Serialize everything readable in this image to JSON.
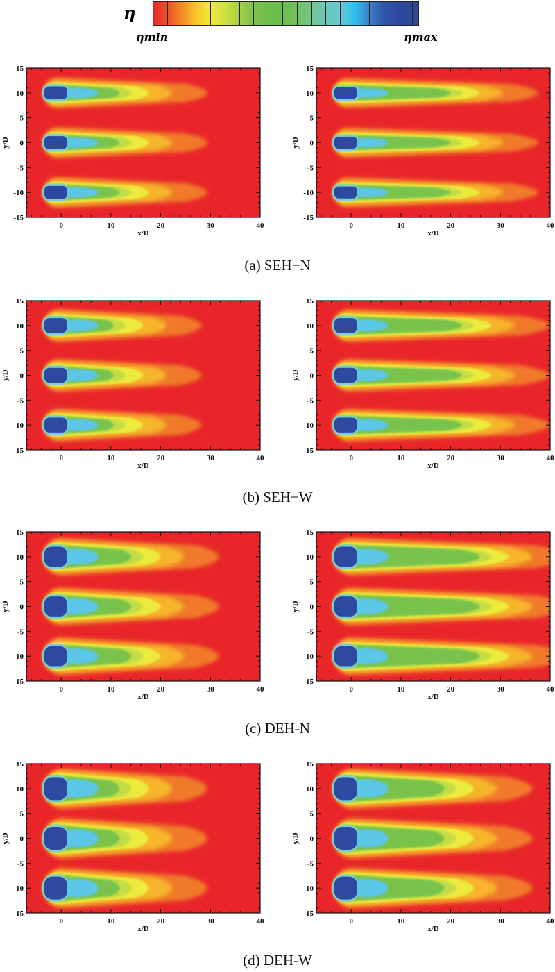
{
  "colorbar": {
    "symbol": "η",
    "min_label": "ηmin",
    "max_label": "ηmax",
    "colors": [
      "#e8262a",
      "#ef5128",
      "#f58a25",
      "#f9c42a",
      "#f1ea3a",
      "#cde043",
      "#a6d045",
      "#7dc24a",
      "#6fbe4a",
      "#6cbd4c",
      "#72c05d",
      "#74c690",
      "#6bc7bb",
      "#68c8d4",
      "#2fbff0",
      "#3c80c6",
      "#2f55a8",
      "#2e4aa0",
      "#2d4798"
    ]
  },
  "chart_data": [
    {
      "type": "heatmap",
      "panel": "a-left",
      "xlabel": "x/D",
      "ylabel": "y/D",
      "xlim": [
        -7,
        40
      ],
      "ylim": [
        -15,
        15
      ],
      "xticks": [
        0,
        10,
        20,
        30,
        40
      ],
      "yticks": [
        -15,
        -10,
        -5,
        0,
        5,
        10,
        15
      ],
      "jet_y": [
        -10,
        0,
        10
      ],
      "plume_length_xD": 13,
      "core_halfwidth_yD": 1.3
    },
    {
      "type": "heatmap",
      "panel": "a-right",
      "xlabel": "x/D",
      "ylabel": "y/D",
      "xlim": [
        -7,
        40
      ],
      "ylim": [
        -15,
        15
      ],
      "xticks": [
        0,
        10,
        20,
        30,
        40
      ],
      "yticks": [
        -15,
        -10,
        -5,
        0,
        5,
        10,
        15
      ],
      "jet_y": [
        -10,
        0,
        10
      ],
      "plume_length_xD": 20,
      "core_halfwidth_yD": 1.2
    },
    {
      "type": "heatmap",
      "panel": "b-left",
      "xlabel": "x/D",
      "ylabel": "y/D",
      "xlim": [
        -7,
        40
      ],
      "ylim": [
        -15,
        15
      ],
      "xticks": [
        0,
        10,
        20,
        30,
        40
      ],
      "yticks": [
        -15,
        -10,
        -5,
        0,
        5,
        10,
        15
      ],
      "jet_y": [
        -10,
        0,
        10
      ],
      "plume_length_xD": 12,
      "core_halfwidth_yD": 1.5
    },
    {
      "type": "heatmap",
      "panel": "b-right",
      "xlabel": "x/D",
      "ylabel": "y/D",
      "xlim": [
        -7,
        40
      ],
      "ylim": [
        -15,
        15
      ],
      "xticks": [
        0,
        10,
        20,
        30,
        40
      ],
      "yticks": [
        -15,
        -10,
        -5,
        0,
        5,
        10,
        15
      ],
      "jet_y": [
        -10,
        0,
        10
      ],
      "plume_length_xD": 22,
      "core_halfwidth_yD": 1.5
    },
    {
      "type": "heatmap",
      "panel": "c-left",
      "xlabel": "x/D",
      "ylabel": "y/D",
      "xlim": [
        -7,
        40
      ],
      "ylim": [
        -15,
        15
      ],
      "xticks": [
        0,
        10,
        20,
        30,
        40
      ],
      "yticks": [
        -15,
        -10,
        -5,
        0,
        5,
        10,
        15
      ],
      "jet_y": [
        -10,
        0,
        10
      ],
      "plume_length_xD": 15,
      "core_halfwidth_yD": 2
    },
    {
      "type": "heatmap",
      "panel": "c-right",
      "xlabel": "x/D",
      "ylabel": "y/D",
      "xlim": [
        -7,
        40
      ],
      "ylim": [
        -15,
        15
      ],
      "xticks": [
        0,
        10,
        20,
        30,
        40
      ],
      "yticks": [
        -15,
        -10,
        -5,
        0,
        5,
        10,
        15
      ],
      "jet_y": [
        -10,
        0,
        10
      ],
      "plume_length_xD": 25,
      "core_halfwidth_yD": 2
    },
    {
      "type": "heatmap",
      "panel": "d-left",
      "xlabel": "x/D",
      "ylabel": "y/D",
      "xlim": [
        -7,
        40
      ],
      "ylim": [
        -15,
        15
      ],
      "xticks": [
        0,
        10,
        20,
        30,
        40
      ],
      "yticks": [
        -15,
        -10,
        -5,
        0,
        5,
        10,
        15
      ],
      "jet_y": [
        -10,
        0,
        10
      ],
      "plume_length_xD": 13,
      "core_halfwidth_yD": 2.3
    },
    {
      "type": "heatmap",
      "panel": "d-right",
      "xlabel": "x/D",
      "ylabel": "y/D",
      "xlim": [
        -7,
        40
      ],
      "ylim": [
        -15,
        15
      ],
      "xticks": [
        0,
        10,
        20,
        30,
        40
      ],
      "yticks": [
        -15,
        -10,
        -5,
        0,
        5,
        10,
        15
      ],
      "jet_y": [
        -10,
        0,
        10
      ],
      "plume_length_xD": 19,
      "core_halfwidth_yD": 2.3
    }
  ],
  "captions": [
    "(a)  SEH−N",
    "(b)  SEH−W",
    "(c)  DEH-N",
    "(d)  DEH-W"
  ]
}
